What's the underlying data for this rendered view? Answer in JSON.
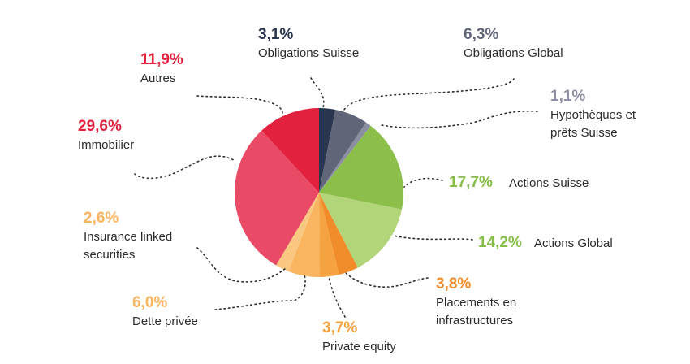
{
  "chart_data": {
    "type": "pie",
    "slices": [
      {
        "name": "Obligations Suisse",
        "label_lines": [
          "Obligations Suisse"
        ],
        "value": 3.1,
        "value_label": "3,1%",
        "color": "#2a3550",
        "label_color": "#2a3550"
      },
      {
        "name": "Obligations Global",
        "label_lines": [
          "Obligations Global"
        ],
        "value": 6.3,
        "value_label": "6,3%",
        "color": "#606578",
        "label_color": "#606578"
      },
      {
        "name": "Hypothèques et prêts Suisse",
        "label_lines": [
          "Hypothèques et",
          "prêts Suisse"
        ],
        "value": 1.1,
        "value_label": "1,1%",
        "color": "#8c8ea2",
        "label_color": "#8c8ea2"
      },
      {
        "name": "Actions Suisse",
        "label_lines": [
          "Actions Suisse"
        ],
        "value": 17.7,
        "value_label": "17,7%",
        "color": "#8bbf4a",
        "label_color": "#86bd46"
      },
      {
        "name": "Actions Global",
        "label_lines": [
          "Actions Global"
        ],
        "value": 14.2,
        "value_label": "14,2%",
        "color": "#b2d57a",
        "label_color": "#86bd46"
      },
      {
        "name": "Placements en infrastructures",
        "label_lines": [
          "Placements en",
          "infrastructures"
        ],
        "value": 3.8,
        "value_label": "3,8%",
        "color": "#f08c2a",
        "label_color": "#f08c2a"
      },
      {
        "name": "Private equity",
        "label_lines": [
          "Private equity"
        ],
        "value": 3.7,
        "value_label": "3,7%",
        "color": "#f5a240",
        "label_color": "#f5a240"
      },
      {
        "name": "Dette privée",
        "label_lines": [
          "Dette privée"
        ],
        "value": 6.0,
        "value_label": "6,0%",
        "color": "#f9b560",
        "label_color": "#f9b560"
      },
      {
        "name": "Insurance linked securities",
        "label_lines": [
          "Insurance linked",
          "securities"
        ],
        "value": 2.6,
        "value_label": "2,6%",
        "color": "#fbc882",
        "label_color": "#f9b560"
      },
      {
        "name": "Immobilier",
        "label_lines": [
          "Immobilier"
        ],
        "value": 29.6,
        "value_label": "29,6%",
        "color": "#e94b66",
        "label_color": "#e2213f"
      },
      {
        "name": "Autres",
        "label_lines": [
          "Autres"
        ],
        "value": 11.9,
        "value_label": "11,9%",
        "color": "#e2213f",
        "label_color": "#e2213f"
      }
    ]
  }
}
